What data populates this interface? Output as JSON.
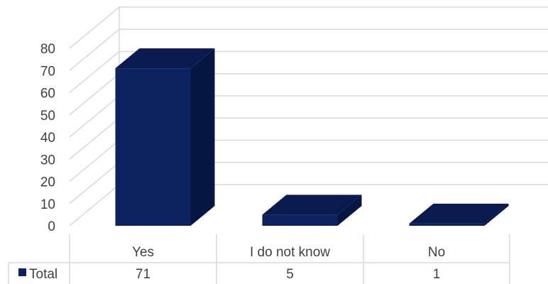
{
  "chart_data": {
    "type": "bar",
    "style": "3d-column-with-data-table",
    "categories": [
      "Yes",
      "I do not know",
      "No"
    ],
    "series": [
      {
        "name": "Total",
        "values": [
          71,
          5,
          1
        ],
        "color": "#0d2260"
      }
    ],
    "ylim": [
      0,
      80
    ],
    "yticks": [
      0,
      10,
      20,
      30,
      40,
      50,
      60,
      70,
      80
    ],
    "grid": true,
    "legend": "data-table-left",
    "colors": {
      "bar_front": "#0d2260",
      "bar_top": "#081a4e",
      "bar_side": "#061642",
      "grid": "#d9d9d9",
      "text": "#404040"
    }
  }
}
